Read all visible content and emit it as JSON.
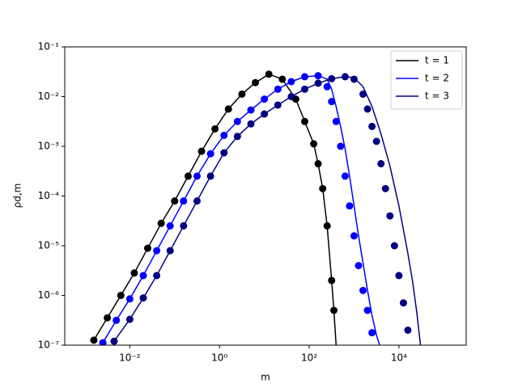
{
  "chart_data": {
    "type": "line",
    "xlabel": "m",
    "ylabel": "ρd,m",
    "xscale": "log",
    "yscale": "log",
    "xlim": [
      0.000355,
      316000
    ],
    "ylim": [
      1e-07,
      0.1
    ],
    "xticks": [
      {
        "value": 0.01,
        "label": "10⁻²"
      },
      {
        "value": 1,
        "label": "10⁰"
      },
      {
        "value": 100,
        "label": "10²"
      },
      {
        "value": 10000,
        "label": "10⁴"
      }
    ],
    "yticks": [
      {
        "value": 1e-07,
        "label": "10⁻⁷"
      },
      {
        "value": 1e-06,
        "label": "10⁻⁶"
      },
      {
        "value": 1e-05,
        "label": "10⁻⁵"
      },
      {
        "value": 0.0001,
        "label": "10⁻⁴"
      },
      {
        "value": 0.001,
        "label": "10⁻³"
      },
      {
        "value": 0.01,
        "label": "10⁻²"
      },
      {
        "value": 0.1,
        "label": "10⁻¹"
      }
    ],
    "legend": "upper right",
    "series": [
      {
        "name": "t = 1",
        "color": "#000000",
        "x": [
          0.00158,
          0.00316,
          0.00631,
          0.0126,
          0.0251,
          0.0501,
          0.1,
          0.2,
          0.398,
          0.794,
          1.58,
          3.16,
          6.31,
          12.6,
          25.1,
          50.1,
          79.4,
          126,
          158,
          200,
          251,
          316,
          355,
          398
        ],
        "values": [
          1.26e-07,
          3.55e-07,
          1e-06,
          2.82e-06,
          8.91e-06,
          2.82e-05,
          7.94e-05,
          0.000251,
          0.000794,
          0.00224,
          0.00562,
          0.0112,
          0.0191,
          0.0282,
          0.0224,
          0.00891,
          0.00316,
          0.00112,
          0.000447,
          0.000141,
          2.51e-05,
          2e-06,
          5.01e-07,
          1e-07
        ],
        "points": {
          "x": [
            0.00158,
            0.00316,
            0.00631,
            0.0126,
            0.0251,
            0.0501,
            0.1,
            0.2,
            0.398,
            0.794,
            1.58,
            3.16,
            6.31,
            12.6,
            25.1,
            50.1,
            79.4,
            126,
            158,
            200,
            251,
            316,
            355
          ],
          "values": [
            1.26e-07,
            3.55e-07,
            1e-06,
            2.82e-06,
            8.91e-06,
            2.82e-05,
            7.94e-05,
            0.000251,
            0.000794,
            0.00224,
            0.00562,
            0.0112,
            0.0191,
            0.0282,
            0.0224,
            0.00891,
            0.00316,
            0.00112,
            0.000447,
            0.000141,
            2.51e-05,
            2e-06,
            5.01e-07
          ]
        }
      },
      {
        "name": "t = 2",
        "color": "#0000ff",
        "x": [
          0.00251,
          0.00501,
          0.01,
          0.02,
          0.0398,
          0.0794,
          0.158,
          0.316,
          0.631,
          1.26,
          2.51,
          5.01,
          10,
          20,
          39.8,
          79.4,
          158,
          251,
          316,
          398,
          501,
          631,
          794,
          1000,
          1259,
          1585,
          1995,
          2512,
          3162,
          3715
        ],
        "values": [
          1.12e-07,
          3.16e-07,
          8.51e-07,
          2.51e-06,
          7.94e-06,
          2.51e-05,
          7.94e-05,
          0.000251,
          0.000708,
          0.00166,
          0.00316,
          0.00537,
          0.00891,
          0.0141,
          0.02,
          0.0251,
          0.0263,
          0.0224,
          0.0141,
          0.00631,
          0.00251,
          0.000891,
          0.000251,
          6.31e-05,
          1.58e-05,
          4.47e-06,
          1.26e-06,
          3.98e-07,
          1.58e-07,
          1e-07
        ],
        "points": {
          "x": [
            0.00251,
            0.00501,
            0.01,
            0.02,
            0.0398,
            0.0794,
            0.158,
            0.316,
            0.631,
            1.26,
            2.51,
            5.01,
            10,
            20,
            39.8,
            79.4,
            158,
            251,
            316,
            398,
            501,
            631,
            794,
            1000,
            1259,
            1585,
            1995,
            2512
          ],
          "values": [
            1.12e-07,
            3.16e-07,
            8.51e-07,
            2.51e-06,
            7.94e-06,
            2.51e-05,
            7.94e-05,
            0.000251,
            0.000708,
            0.00166,
            0.00316,
            0.00537,
            0.00891,
            0.0141,
            0.02,
            0.0251,
            0.0263,
            0.0158,
            0.00794,
            0.00316,
            0.001,
            0.000251,
            6.31e-05,
            1.58e-05,
            3.98e-06,
            1.26e-06,
            5.01e-07,
            1.78e-07
          ]
        }
      },
      {
        "name": "t = 3",
        "color": "#000080",
        "x": [
          0.00447,
          0.01,
          0.02,
          0.0398,
          0.0794,
          0.158,
          0.316,
          0.631,
          1.26,
          2.51,
          5.01,
          10,
          20,
          39.8,
          79.4,
          158,
          316,
          631,
          1000,
          1585,
          2512,
          3981,
          6310,
          10000,
          15800,
          20000,
          25100,
          30200
        ],
        "values": [
          1.2e-07,
          3.31e-07,
          8.91e-07,
          2.51e-06,
          7.94e-06,
          2.51e-05,
          7.94e-05,
          0.000251,
          0.000741,
          0.00158,
          0.00282,
          0.00447,
          0.00676,
          0.01,
          0.0141,
          0.0186,
          0.0229,
          0.0251,
          0.024,
          0.0158,
          0.00631,
          0.00178,
          0.000398,
          6.31e-05,
          7.08e-06,
          2e-06,
          4.47e-07,
          1e-07
        ],
        "points": {
          "x": [
            0.00447,
            0.01,
            0.02,
            0.0398,
            0.0794,
            0.158,
            0.316,
            0.631,
            1.26,
            2.51,
            5.01,
            10,
            20,
            39.8,
            79.4,
            158,
            316,
            631,
            1000,
            1585,
            1995,
            2512,
            3162,
            3981,
            5012,
            6310,
            7943,
            10000,
            12600,
            15800
          ],
          "values": [
            1.2e-07,
            3.31e-07,
            8.91e-07,
            2.51e-06,
            7.94e-06,
            2.51e-05,
            7.94e-05,
            0.000251,
            0.000741,
            0.00158,
            0.00282,
            0.00447,
            0.00676,
            0.01,
            0.0141,
            0.0186,
            0.0229,
            0.0251,
            0.0224,
            0.0112,
            0.00562,
            0.00251,
            0.00126,
            0.000447,
            0.000141,
            3.98e-05,
            1e-05,
            2.51e-06,
            7.08e-07,
            2e-07
          ]
        }
      }
    ]
  }
}
